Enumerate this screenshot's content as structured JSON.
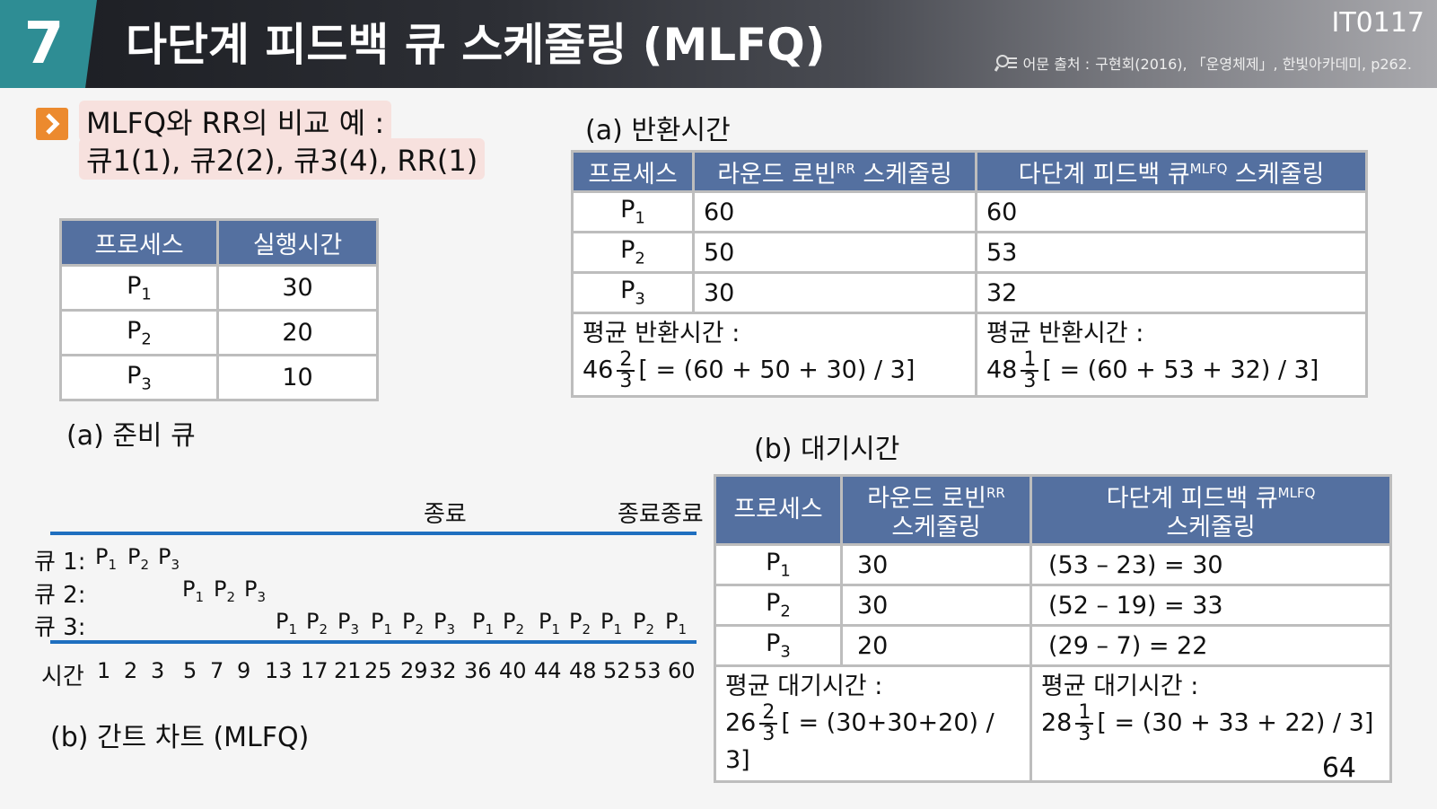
{
  "header": {
    "chapter": "7",
    "title": "다단계 피드백 큐 스케줄링 (MLFQ)",
    "code": "IT0117",
    "source_prefix": "어문 출처 :",
    "source": "구현회(2016), 「운영체제」, 한빛아카데미, p262.",
    "icon": "search-book-icon"
  },
  "intro": {
    "line1": "MLFQ와 RR의 비교 예 :",
    "line2": "큐1(1), 큐2(2), 큐3(4), RR(1)",
    "icon": "chevron-right-icon",
    "accent": "#ec8a2e"
  },
  "ready_table": {
    "headers": [
      "프로세스",
      "실행시간"
    ],
    "rows": [
      {
        "p": "P",
        "sub": "1",
        "time": "30"
      },
      {
        "p": "P",
        "sub": "2",
        "time": "20"
      },
      {
        "p": "P",
        "sub": "3",
        "time": "10"
      }
    ],
    "caption": "(a) 준비 큐"
  },
  "turnaround": {
    "caption": "(a) 반환시간",
    "h_process": "프로세스",
    "h_rr": "라운드 로빈",
    "h_rr_sup": "RR",
    "h_rr_tail": " 스케줄링",
    "h_mlfq": "다단계 피드백 큐",
    "h_mlfq_sup": "MLFQ",
    "h_mlfq_tail": " 스케줄링",
    "rows": [
      {
        "p": "P",
        "sub": "1",
        "rr": "60",
        "mlfq": "60"
      },
      {
        "p": "P",
        "sub": "2",
        "rr": "50",
        "mlfq": "53"
      },
      {
        "p": "P",
        "sub": "3",
        "rr": "30",
        "mlfq": "32"
      }
    ],
    "avg_label": "평균 반환시간 :",
    "rr_avg": {
      "whole": "46",
      "num": "2",
      "den": "3",
      "expr": "[ = (60 + 50 + 30) / 3]"
    },
    "mlfq_avg": {
      "whole": "48",
      "num": "1",
      "den": "3",
      "expr": "[ = (60 + 53 + 32) / 3]"
    }
  },
  "waiting": {
    "caption": "(b) 대기시간",
    "h_process": "프로세스",
    "h_rr": "라운드 로빈",
    "h_rr_sup": "RR",
    "h_rr_line2": "스케줄링",
    "h_mlfq": "다단계 피드백 큐",
    "h_mlfq_sup": "MLFQ",
    "h_mlfq_line2": "스케줄링",
    "rows": [
      {
        "p": "P",
        "sub": "1",
        "rr": "30",
        "mlfq": "(53 – 23) = 30"
      },
      {
        "p": "P",
        "sub": "2",
        "rr": "30",
        "mlfq": "(52 – 19) = 33"
      },
      {
        "p": "P",
        "sub": "3",
        "rr": "20",
        "mlfq": "(29 – 7) = 22"
      }
    ],
    "avg_label": "평균 대기시간 :",
    "rr_avg": {
      "whole": "26",
      "num": "2",
      "den": "3",
      "expr": "[ = (30+30+20) / 3]"
    },
    "mlfq_avg": {
      "whole": "28",
      "num": "1",
      "den": "3",
      "expr": "[ = (30 + 33 + 22) / 3]"
    }
  },
  "gantt": {
    "end_label_1": "종료",
    "end_label_2": "종료종료",
    "q1_label": "큐 1:",
    "q2_label": "큐 2:",
    "q3_label": "큐 3:",
    "q1": [
      "1",
      "2",
      "3"
    ],
    "q2": [
      "1",
      "2",
      "3"
    ],
    "q3": [
      "1",
      "2",
      "3",
      "1",
      "2",
      "3",
      "1",
      "2",
      "1",
      "2",
      "1",
      "2",
      "1"
    ],
    "time_label": "시간",
    "times": [
      "1",
      "2",
      "3",
      "5",
      "7",
      "9",
      "13",
      "17",
      "21",
      "25",
      "29",
      "32",
      "36",
      "40",
      "44",
      "48",
      "52",
      "53",
      "60"
    ],
    "caption": "(b) 간트 차트 (MLFQ)",
    "line_color": "#1f6fbf"
  },
  "page_number": "64"
}
